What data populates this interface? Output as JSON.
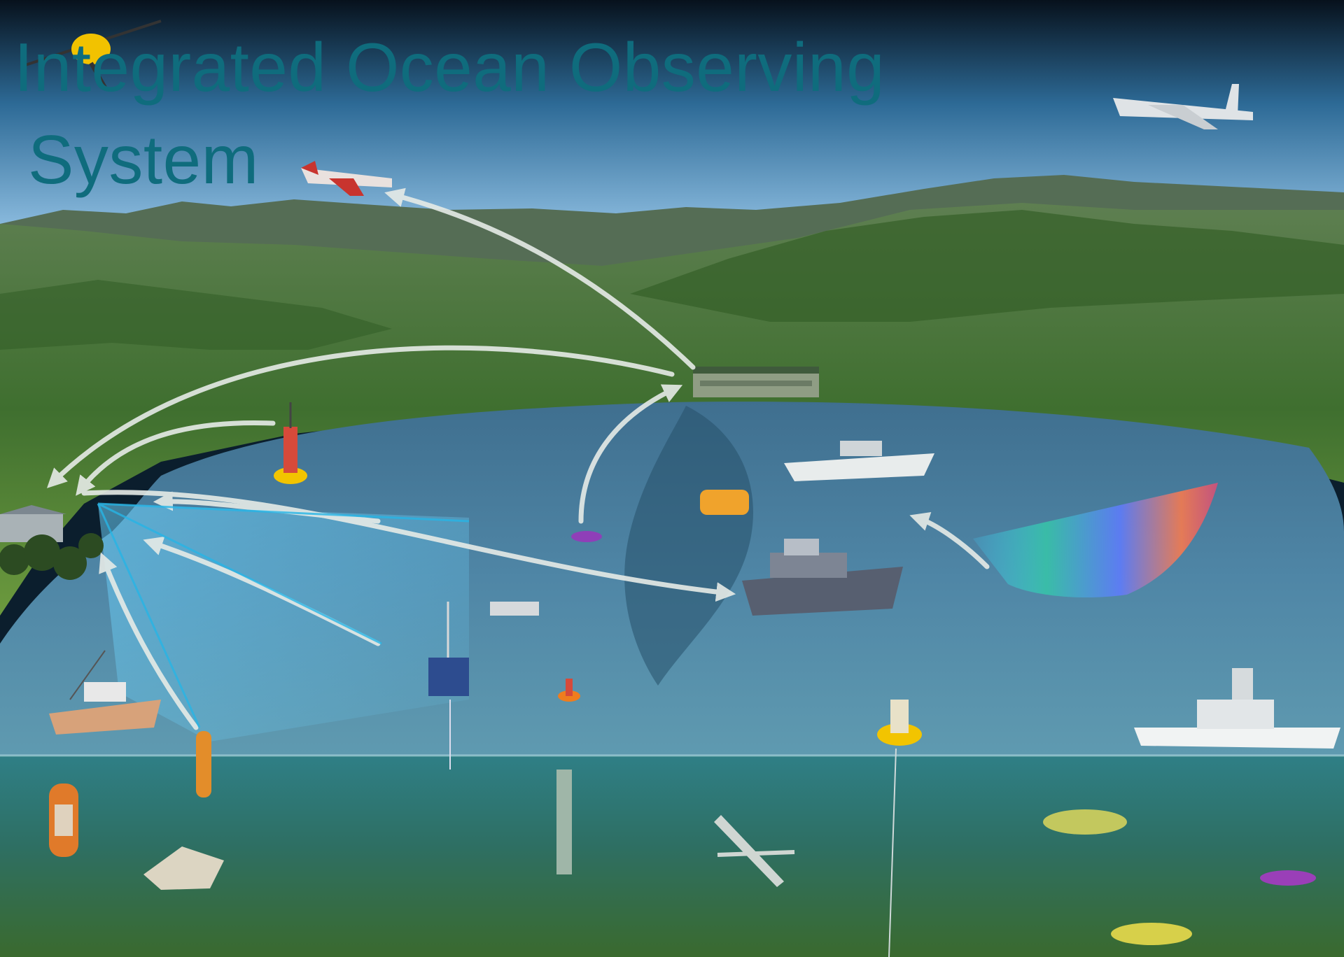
{
  "title": {
    "line1": "Integrated Ocean Observing",
    "line2": "System"
  },
  "palette": {
    "title_text": "#0f6c7d",
    "sky_top": "#08131e",
    "sky_bottom": "#7fb2d8",
    "hills": "#4f7a3c",
    "bay_water": "#4f86a6",
    "underwater": "#3e7a57",
    "arrow": "#e6ebe7",
    "radar_beam": "#38a6cf",
    "buoy_yellow": "#f2c400"
  }
}
